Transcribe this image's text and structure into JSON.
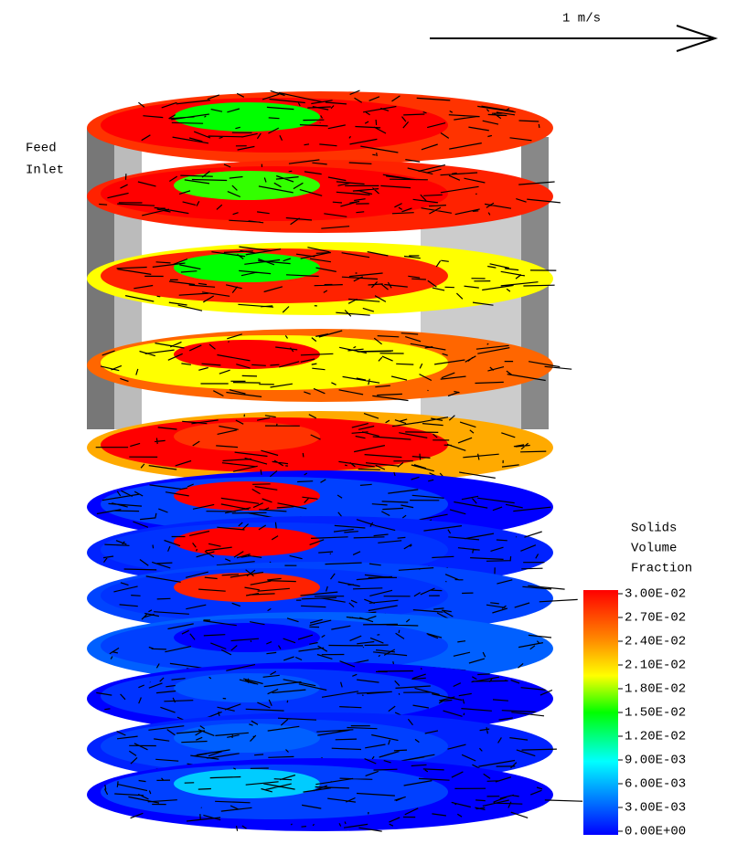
{
  "scale_arrow": {
    "label": "1 m/s"
  },
  "inlet_label": [
    "Feed",
    "Inlet"
  ],
  "colorbar": {
    "title": [
      "Solids",
      "Volume",
      "Fraction"
    ],
    "ticks": [
      {
        "value": 0.03,
        "label": "3.00E-02"
      },
      {
        "value": 0.027,
        "label": "2.70E-02"
      },
      {
        "value": 0.024,
        "label": "2.40E-02"
      },
      {
        "value": 0.021,
        "label": "2.10E-02"
      },
      {
        "value": 0.018,
        "label": "1.80E-02"
      },
      {
        "value": 0.015,
        "label": "1.50E-02"
      },
      {
        "value": 0.012,
        "label": "1.20E-02"
      },
      {
        "value": 0.009,
        "label": "9.00E-03"
      },
      {
        "value": 0.006,
        "label": "6.00E-03"
      },
      {
        "value": 0.003,
        "label": "3.00E-03"
      },
      {
        "value": 0,
        "label": "0.00E+00"
      }
    ]
  }
}
